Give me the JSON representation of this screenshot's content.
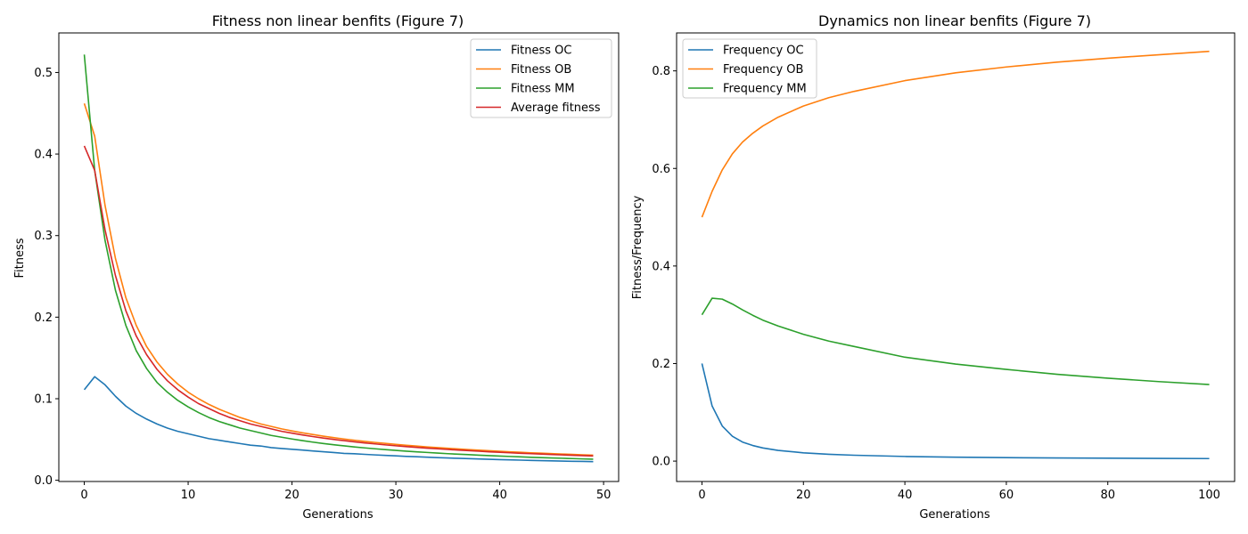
{
  "chart_data": [
    {
      "type": "line",
      "title": "Fitness non linear benfits (Figure 7)",
      "xlabel": "Generations",
      "ylabel": "Fitness",
      "xlim": [
        -2.45,
        51.45
      ],
      "ylim": [
        -0.0015,
        0.5485
      ],
      "xticks": [
        0,
        10,
        20,
        30,
        40,
        50
      ],
      "yticks": [
        0.0,
        0.1,
        0.2,
        0.3,
        0.4,
        0.5
      ],
      "xtick_labels": [
        "0",
        "10",
        "20",
        "30",
        "40",
        "50"
      ],
      "ytick_labels": [
        "0.0",
        "0.1",
        "0.2",
        "0.3",
        "0.4",
        "0.5"
      ],
      "grid": false,
      "legend_position": "upper right",
      "x_start": 0,
      "x_end": 49,
      "x_step": 1,
      "series": [
        {
          "name": "Fitness OC",
          "color": "#1f77b4",
          "values": [
            0.111,
            0.127,
            0.117,
            0.103,
            0.091,
            0.082,
            0.075,
            0.069,
            0.064,
            0.06,
            0.057,
            0.054,
            0.051,
            0.049,
            0.047,
            0.045,
            0.043,
            0.042,
            0.04,
            0.039,
            0.038,
            0.037,
            0.036,
            0.035,
            0.034,
            0.033,
            0.0325,
            0.0318,
            0.0311,
            0.0305,
            0.0299,
            0.0293,
            0.0288,
            0.0283,
            0.0278,
            0.0273,
            0.0269,
            0.0265,
            0.0261,
            0.0257,
            0.0253,
            0.025,
            0.0247,
            0.0244,
            0.0241,
            0.0238,
            0.0235,
            0.0233,
            0.0231,
            0.0229
          ]
        },
        {
          "name": "Fitness OB",
          "color": "#ff7f0e",
          "values": [
            0.462,
            0.422,
            0.337,
            0.272,
            0.224,
            0.19,
            0.164,
            0.145,
            0.13,
            0.118,
            0.108,
            0.1,
            0.093,
            0.087,
            0.082,
            0.077,
            0.073,
            0.069,
            0.066,
            0.063,
            0.0605,
            0.0582,
            0.0561,
            0.0541,
            0.0523,
            0.0506,
            0.0491,
            0.0477,
            0.0464,
            0.0452,
            0.044,
            0.0429,
            0.0419,
            0.0409,
            0.04,
            0.0392,
            0.0384,
            0.0376,
            0.0369,
            0.0362,
            0.0355,
            0.0349,
            0.0343,
            0.0337,
            0.0332,
            0.0327,
            0.0322,
            0.0317,
            0.0312,
            0.0308
          ]
        },
        {
          "name": "Fitness MM",
          "color": "#2ca02c",
          "values": [
            0.522,
            0.38,
            0.294,
            0.233,
            0.19,
            0.159,
            0.137,
            0.12,
            0.108,
            0.098,
            0.09,
            0.083,
            0.077,
            0.072,
            0.068,
            0.064,
            0.061,
            0.058,
            0.055,
            0.0528,
            0.0506,
            0.0486,
            0.0468,
            0.0451,
            0.0436,
            0.0422,
            0.0409,
            0.0397,
            0.0386,
            0.0376,
            0.0366,
            0.0357,
            0.0349,
            0.0341,
            0.0333,
            0.0326,
            0.032,
            0.0314,
            0.0308,
            0.0302,
            0.0297,
            0.0292,
            0.0287,
            0.0282,
            0.0278,
            0.0274,
            0.027,
            0.0266,
            0.0262,
            0.0258
          ]
        },
        {
          "name": "Average fitness",
          "color": "#d62728",
          "values": [
            0.41,
            0.38,
            0.307,
            0.251,
            0.208,
            0.177,
            0.154,
            0.136,
            0.122,
            0.111,
            0.102,
            0.094,
            0.088,
            0.082,
            0.077,
            0.073,
            0.069,
            0.066,
            0.063,
            0.06,
            0.0578,
            0.0556,
            0.0536,
            0.0518,
            0.0501,
            0.0486,
            0.0471,
            0.0458,
            0.0446,
            0.0434,
            0.0423,
            0.0413,
            0.0403,
            0.0394,
            0.0386,
            0.0378,
            0.037,
            0.0363,
            0.0356,
            0.0349,
            0.0343,
            0.0337,
            0.0331,
            0.0326,
            0.0321,
            0.0316,
            0.0311,
            0.0306,
            0.0302,
            0.0298
          ]
        }
      ]
    },
    {
      "type": "line",
      "title": "Dynamics non linear benfits (Figure 7)",
      "xlabel": "Generations",
      "ylabel": "Fitness/Frequency",
      "xlim": [
        -5,
        105
      ],
      "ylim": [
        -0.0418,
        0.8778
      ],
      "xticks": [
        0,
        20,
        40,
        60,
        80,
        100
      ],
      "yticks": [
        0.0,
        0.2,
        0.4,
        0.6,
        0.8
      ],
      "xtick_labels": [
        "0",
        "20",
        "40",
        "60",
        "80",
        "100"
      ],
      "ytick_labels": [
        "0.0",
        "0.2",
        "0.4",
        "0.6",
        "0.8"
      ],
      "grid": false,
      "legend_position": "upper left",
      "series": [
        {
          "name": "Frequency OC",
          "color": "#1f77b4",
          "x": [
            0,
            2,
            4,
            6,
            8,
            10,
            12,
            15,
            20,
            25,
            30,
            40,
            50,
            60,
            70,
            80,
            90,
            100
          ],
          "values": [
            0.2,
            0.113,
            0.072,
            0.051,
            0.039,
            0.032,
            0.027,
            0.022,
            0.017,
            0.014,
            0.012,
            0.0095,
            0.0081,
            0.0071,
            0.0064,
            0.0059,
            0.0055,
            0.0052
          ]
        },
        {
          "name": "Frequency OB",
          "color": "#ff7f0e",
          "x": [
            0,
            2,
            4,
            6,
            8,
            10,
            12,
            15,
            20,
            25,
            30,
            40,
            50,
            60,
            70,
            80,
            90,
            100
          ],
          "values": [
            0.5,
            0.553,
            0.597,
            0.63,
            0.654,
            0.672,
            0.687,
            0.705,
            0.728,
            0.745,
            0.758,
            0.78,
            0.796,
            0.808,
            0.818,
            0.826,
            0.833,
            0.84
          ]
        },
        {
          "name": "Frequency MM",
          "color": "#2ca02c",
          "x": [
            0,
            2,
            4,
            6,
            8,
            10,
            12,
            15,
            20,
            25,
            30,
            40,
            50,
            60,
            70,
            80,
            90,
            100
          ],
          "values": [
            0.3,
            0.334,
            0.332,
            0.322,
            0.31,
            0.299,
            0.289,
            0.277,
            0.26,
            0.246,
            0.235,
            0.213,
            0.199,
            0.188,
            0.178,
            0.17,
            0.163,
            0.157
          ]
        }
      ]
    }
  ]
}
